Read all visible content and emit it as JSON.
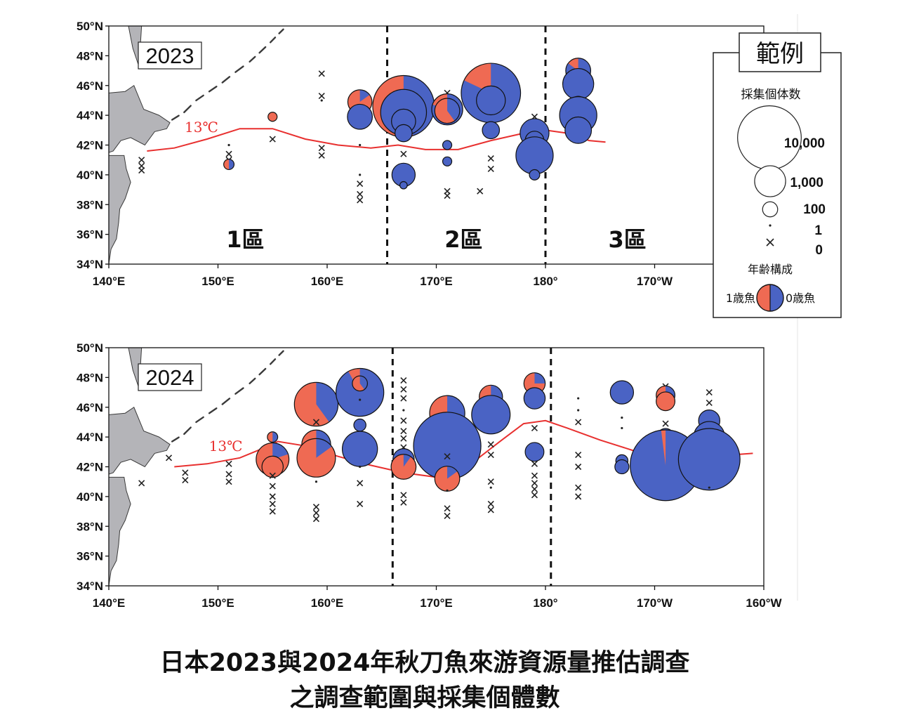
{
  "caption": {
    "line1": "日本2023與2024年秋刀魚來游資源量推估調查",
    "line2": "之調查範圍與採集個體數"
  },
  "colors": {
    "age1": "#ef6a53",
    "age0": "#4a63c4",
    "isotherm": "#e8302f",
    "land": "#b4b4b8",
    "coast": "#3a3a3a"
  },
  "lat_ticks": [
    "50°N",
    "48°N",
    "46°N",
    "44°N",
    "42°N",
    "40°N",
    "38°N",
    "36°N",
    "34°N"
  ],
  "legend": {
    "title": "範例",
    "count_title": "採集個体数",
    "sizes": [
      {
        "label": "10,000",
        "count": 10000
      },
      {
        "label": "1,000",
        "count": 1000
      },
      {
        "label": "100",
        "count": 100
      },
      {
        "label": "1",
        "count": 1
      },
      {
        "label": "0",
        "count": 0
      }
    ],
    "age_title": "年齢構成",
    "age1_label": "1歳魚",
    "age0_label": "0歳魚"
  },
  "maps": [
    {
      "year": "2023",
      "isotherm_label": "13℃",
      "lon_ticks": [
        "140°E",
        "150°E",
        "160°E",
        "170°E",
        "180°",
        "170°W"
      ],
      "zone_lines_lon": [
        165.5,
        180.0
      ],
      "zones": [
        {
          "label": "1區",
          "lon": 152.5
        },
        {
          "label": "2區",
          "lon": 172.5
        },
        {
          "label": "3區",
          "lon": 187.5
        }
      ],
      "isotherm": [
        [
          143.5,
          41.6
        ],
        [
          146,
          41.8
        ],
        [
          149,
          42.4
        ],
        [
          152,
          43.1
        ],
        [
          155,
          43.1
        ],
        [
          158,
          42.4
        ],
        [
          161,
          42.0
        ],
        [
          164,
          41.8
        ],
        [
          166.5,
          42.0
        ],
        [
          169,
          41.7
        ],
        [
          172,
          41.7
        ],
        [
          175,
          42.3
        ],
        [
          178,
          42.8
        ],
        [
          180,
          43.0
        ],
        [
          182,
          42.8
        ],
        [
          184,
          42.3
        ],
        [
          185.5,
          42.2
        ]
      ],
      "stations": [
        {
          "lon": 143,
          "lat": 41.0,
          "n": 0
        },
        {
          "lon": 143,
          "lat": 40.6,
          "n": 0
        },
        {
          "lon": 143,
          "lat": 40.3,
          "n": 0
        },
        {
          "lon": 151,
          "lat": 42.0,
          "n": 1
        },
        {
          "lon": 151,
          "lat": 41.4,
          "n": 0
        },
        {
          "lon": 151,
          "lat": 41.0,
          "n": 0
        },
        {
          "lon": 151,
          "lat": 40.7,
          "n": 30,
          "age1": 0.5
        },
        {
          "lon": 155,
          "lat": 43.9,
          "n": 20,
          "age1": 1.0
        },
        {
          "lon": 155,
          "lat": 42.4,
          "n": 0
        },
        {
          "lon": 159.5,
          "lat": 46.8,
          "n": 0
        },
        {
          "lon": 159.5,
          "lat": 45.3,
          "n": 0
        },
        {
          "lon": 159.5,
          "lat": 45.0,
          "n": 1
        },
        {
          "lon": 159.5,
          "lat": 41.8,
          "n": 0
        },
        {
          "lon": 159.5,
          "lat": 41.3,
          "n": 0
        },
        {
          "lon": 163,
          "lat": 45.3,
          "n": 0
        },
        {
          "lon": 163,
          "lat": 44.9,
          "n": 450,
          "age1": 0.85
        },
        {
          "lon": 163,
          "lat": 43.9,
          "n": 500,
          "age1": 0.0
        },
        {
          "lon": 163,
          "lat": 42.0,
          "n": 1
        },
        {
          "lon": 163,
          "lat": 40.0,
          "n": 1
        },
        {
          "lon": 163,
          "lat": 39.4,
          "n": 0
        },
        {
          "lon": 163,
          "lat": 38.7,
          "n": 0
        },
        {
          "lon": 163,
          "lat": 38.3,
          "n": 0
        },
        {
          "lon": 167,
          "lat": 45.8,
          "n": 0
        },
        {
          "lon": 167,
          "lat": 44.6,
          "n": 9000,
          "age1": 0.55
        },
        {
          "lon": 167,
          "lat": 44.2,
          "n": 3500,
          "age1": 0.0
        },
        {
          "lon": 167,
          "lat": 43.6,
          "n": 450,
          "age1": 0.0
        },
        {
          "lon": 167,
          "lat": 42.8,
          "n": 150,
          "age1": 0.0
        },
        {
          "lon": 167,
          "lat": 41.4,
          "n": 0
        },
        {
          "lon": 167,
          "lat": 40.0,
          "n": 400,
          "age1": 0.0
        },
        {
          "lon": 167,
          "lat": 39.3,
          "n": 10
        },
        {
          "lon": 171,
          "lat": 45.5,
          "n": 0
        },
        {
          "lon": 171,
          "lat": 44.4,
          "n": 1000,
          "age1": 0.2
        },
        {
          "lon": 171,
          "lat": 44.3,
          "n": 500,
          "age1": 0.6
        },
        {
          "lon": 171,
          "lat": 42.0,
          "n": 20,
          "age1": 0.0
        },
        {
          "lon": 171,
          "lat": 40.9,
          "n": 20,
          "age1": 0.0
        },
        {
          "lon": 171,
          "lat": 38.9,
          "n": 0
        },
        {
          "lon": 171,
          "lat": 38.6,
          "n": 0
        },
        {
          "lon": 175,
          "lat": 45.5,
          "n": 8000,
          "age1": 0.18
        },
        {
          "lon": 175,
          "lat": 45.0,
          "n": 800,
          "age1": 0.0
        },
        {
          "lon": 175,
          "lat": 43.0,
          "n": 150,
          "age1": 0.0
        },
        {
          "lon": 175,
          "lat": 41.1,
          "n": 0
        },
        {
          "lon": 175,
          "lat": 40.4,
          "n": 0
        },
        {
          "lon": 174,
          "lat": 38.9,
          "n": 0
        },
        {
          "lon": 179,
          "lat": 43.9,
          "n": 0
        },
        {
          "lon": 179,
          "lat": 42.8,
          "n": 800,
          "age1": 0.0
        },
        {
          "lon": 179,
          "lat": 42.3,
          "n": 200,
          "age1": 0.0
        },
        {
          "lon": 179,
          "lat": 41.3,
          "n": 1800,
          "age1": 0.0
        },
        {
          "lon": 179,
          "lat": 40.0,
          "n": 30,
          "age1": 0.0
        },
        {
          "lon": 183,
          "lat": 47.0,
          "n": 500,
          "age1": 0.15
        },
        {
          "lon": 183,
          "lat": 46.1,
          "n": 1000,
          "age1": 0.0
        },
        {
          "lon": 183,
          "lat": 44.7,
          "n": 150,
          "age1": 0.0
        },
        {
          "lon": 183,
          "lat": 44.0,
          "n": 1800,
          "age1": 0.0
        },
        {
          "lon": 183,
          "lat": 43.0,
          "n": 600,
          "age1": 0.0
        }
      ]
    },
    {
      "year": "2024",
      "isotherm_label": "13℃",
      "lon_ticks": [
        "140°E",
        "150°E",
        "160°E",
        "170°E",
        "180°",
        "170°W",
        "160°W"
      ],
      "zone_lines_lon": [
        166.0,
        180.5
      ],
      "zones": [],
      "isotherm": [
        [
          146,
          42.0
        ],
        [
          149,
          42.2
        ],
        [
          152,
          42.6
        ],
        [
          154,
          43.2
        ],
        [
          155.5,
          43.7
        ],
        [
          158,
          43.4
        ],
        [
          161,
          42.7
        ],
        [
          164,
          42.1
        ],
        [
          167,
          41.6
        ],
        [
          170,
          41.3
        ],
        [
          173,
          42.1
        ],
        [
          176,
          43.8
        ],
        [
          178,
          44.9
        ],
        [
          180,
          45.1
        ],
        [
          182,
          44.6
        ],
        [
          185,
          43.8
        ],
        [
          188,
          43.1
        ],
        [
          191,
          43.0
        ],
        [
          194,
          42.9
        ],
        [
          197,
          42.8
        ],
        [
          199,
          42.9
        ]
      ],
      "stations": [
        {
          "lon": 143,
          "lat": 40.9,
          "n": 0
        },
        {
          "lon": 145.5,
          "lat": 42.6,
          "n": 0
        },
        {
          "lon": 147,
          "lat": 41.6,
          "n": 0
        },
        {
          "lon": 147,
          "lat": 41.1,
          "n": 0
        },
        {
          "lon": 151,
          "lat": 42.2,
          "n": 0
        },
        {
          "lon": 151,
          "lat": 41.5,
          "n": 0
        },
        {
          "lon": 151,
          "lat": 41.0,
          "n": 0
        },
        {
          "lon": 155,
          "lat": 44.0,
          "n": 30,
          "age1": 0.5
        },
        {
          "lon": 155,
          "lat": 43.0,
          "n": 150,
          "age1": 0.0
        },
        {
          "lon": 155,
          "lat": 42.5,
          "n": 1200,
          "age1": 0.8
        },
        {
          "lon": 155,
          "lat": 42.0,
          "n": 300,
          "age1": 1.0
        },
        {
          "lon": 155,
          "lat": 41.4,
          "n": 0
        },
        {
          "lon": 155,
          "lat": 40.7,
          "n": 0
        },
        {
          "lon": 155,
          "lat": 40.0,
          "n": 0
        },
        {
          "lon": 155,
          "lat": 39.5,
          "n": 0
        },
        {
          "lon": 155,
          "lat": 39.0,
          "n": 0
        },
        {
          "lon": 159,
          "lat": 46.2,
          "n": 3000,
          "age1": 0.6
        },
        {
          "lon": 159,
          "lat": 45.0,
          "n": 0
        },
        {
          "lon": 159,
          "lat": 43.5,
          "n": 800,
          "age1": 0.5
        },
        {
          "lon": 159,
          "lat": 42.6,
          "n": 2000,
          "age1": 0.85
        },
        {
          "lon": 159,
          "lat": 41.0,
          "n": 1
        },
        {
          "lon": 159,
          "lat": 39.3,
          "n": 0
        },
        {
          "lon": 159,
          "lat": 38.9,
          "n": 0
        },
        {
          "lon": 159,
          "lat": 38.5,
          "n": 0
        },
        {
          "lon": 163,
          "lat": 47.0,
          "n": 4000,
          "age1": 0.08
        },
        {
          "lon": 163,
          "lat": 47.6,
          "n": 100,
          "age1": 0.6
        },
        {
          "lon": 163,
          "lat": 46.5,
          "n": 1
        },
        {
          "lon": 163,
          "lat": 44.8,
          "n": 50,
          "age1": 0.0
        },
        {
          "lon": 163,
          "lat": 43.6,
          "n": 100,
          "age1": 1.0
        },
        {
          "lon": 163,
          "lat": 43.2,
          "n": 1500,
          "age1": 0.0
        },
        {
          "lon": 163,
          "lat": 42.0,
          "n": 1
        },
        {
          "lon": 163,
          "lat": 40.9,
          "n": 0
        },
        {
          "lon": 163,
          "lat": 39.5,
          "n": 0
        },
        {
          "lon": 167,
          "lat": 47.8,
          "n": 0
        },
        {
          "lon": 167,
          "lat": 47.2,
          "n": 0
        },
        {
          "lon": 167,
          "lat": 46.6,
          "n": 0
        },
        {
          "lon": 167,
          "lat": 45.8,
          "n": 1
        },
        {
          "lon": 167,
          "lat": 45.1,
          "n": 0
        },
        {
          "lon": 167,
          "lat": 44.4,
          "n": 0
        },
        {
          "lon": 167,
          "lat": 43.9,
          "n": 0
        },
        {
          "lon": 167,
          "lat": 43.3,
          "n": 0
        },
        {
          "lon": 167,
          "lat": 42.5,
          "n": 300,
          "age1": 0.0
        },
        {
          "lon": 167,
          "lat": 42.0,
          "n": 500,
          "age1": 0.9
        },
        {
          "lon": 167,
          "lat": 40.1,
          "n": 0
        },
        {
          "lon": 167,
          "lat": 39.6,
          "n": 0
        },
        {
          "lon": 171,
          "lat": 45.6,
          "n": 1500,
          "age1": 0.5
        },
        {
          "lon": 171,
          "lat": 44.6,
          "n": 1000,
          "age1": 0.0
        },
        {
          "lon": 171,
          "lat": 43.4,
          "n": 12000,
          "age1": 0.0
        },
        {
          "lon": 171,
          "lat": 42.7,
          "n": 0
        },
        {
          "lon": 171,
          "lat": 41.2,
          "n": 500,
          "age1": 0.85
        },
        {
          "lon": 171,
          "lat": 40.4,
          "n": 1
        },
        {
          "lon": 171,
          "lat": 39.2,
          "n": 0
        },
        {
          "lon": 171,
          "lat": 38.7,
          "n": 0
        },
        {
          "lon": 175,
          "lat": 47.1,
          "n": 0
        },
        {
          "lon": 175,
          "lat": 46.7,
          "n": 400,
          "age1": 0.6
        },
        {
          "lon": 175,
          "lat": 45.5,
          "n": 2000,
          "age1": 0.0
        },
        {
          "lon": 175,
          "lat": 43.5,
          "n": 0
        },
        {
          "lon": 175,
          "lat": 42.8,
          "n": 0
        },
        {
          "lon": 175,
          "lat": 41.0,
          "n": 0
        },
        {
          "lon": 175,
          "lat": 40.6,
          "n": 1
        },
        {
          "lon": 175,
          "lat": 39.5,
          "n": 0
        },
        {
          "lon": 175,
          "lat": 39.1,
          "n": 0
        },
        {
          "lon": 179,
          "lat": 47.6,
          "n": 300,
          "age1": 0.75
        },
        {
          "lon": 179,
          "lat": 46.6,
          "n": 300,
          "age1": 0.0
        },
        {
          "lon": 179,
          "lat": 44.6,
          "n": 0
        },
        {
          "lon": 179,
          "lat": 43.0,
          "n": 200,
          "age1": 0.0
        },
        {
          "lon": 179,
          "lat": 42.2,
          "n": 0
        },
        {
          "lon": 179,
          "lat": 41.4,
          "n": 0
        },
        {
          "lon": 179,
          "lat": 40.9,
          "n": 0
        },
        {
          "lon": 179,
          "lat": 40.5,
          "n": 0
        },
        {
          "lon": 179,
          "lat": 40.1,
          "n": 0
        },
        {
          "lon": 183,
          "lat": 46.6,
          "n": 1
        },
        {
          "lon": 183,
          "lat": 45.8,
          "n": 1
        },
        {
          "lon": 183,
          "lat": 45.0,
          "n": 0
        },
        {
          "lon": 183,
          "lat": 42.8,
          "n": 0
        },
        {
          "lon": 183,
          "lat": 42.0,
          "n": 0
        },
        {
          "lon": 183,
          "lat": 40.6,
          "n": 0
        },
        {
          "lon": 183,
          "lat": 40.0,
          "n": 0
        },
        {
          "lon": 187,
          "lat": 47.4,
          "n": 0
        },
        {
          "lon": 187,
          "lat": 47.0,
          "n": 400,
          "age1": 0.0
        },
        {
          "lon": 187,
          "lat": 45.3,
          "n": 1
        },
        {
          "lon": 187,
          "lat": 44.6,
          "n": 1
        },
        {
          "lon": 187,
          "lat": 42.4,
          "n": 50,
          "age1": 0.0
        },
        {
          "lon": 187,
          "lat": 42.0,
          "n": 80,
          "age1": 0.0
        },
        {
          "lon": 191,
          "lat": 47.4,
          "n": 0
        },
        {
          "lon": 191,
          "lat": 46.8,
          "n": 200,
          "age1": 0.6
        },
        {
          "lon": 191,
          "lat": 46.4,
          "n": 200,
          "age1": 1.0
        },
        {
          "lon": 191,
          "lat": 44.9,
          "n": 0
        },
        {
          "lon": 191,
          "lat": 44.0,
          "n": 150,
          "age1": 0.0
        },
        {
          "lon": 191,
          "lat": 42.1,
          "n": 14000,
          "age1": 0.02
        },
        {
          "lon": 195,
          "lat": 47.0,
          "n": 0
        },
        {
          "lon": 195,
          "lat": 46.3,
          "n": 0
        },
        {
          "lon": 195,
          "lat": 45.1,
          "n": 300,
          "age1": 0.0
        },
        {
          "lon": 195,
          "lat": 44.0,
          "n": 1000,
          "age1": 0.0
        },
        {
          "lon": 195,
          "lat": 42.5,
          "n": 9000,
          "age1": 0.0
        },
        {
          "lon": 195,
          "lat": 40.6,
          "n": 1
        }
      ]
    }
  ]
}
